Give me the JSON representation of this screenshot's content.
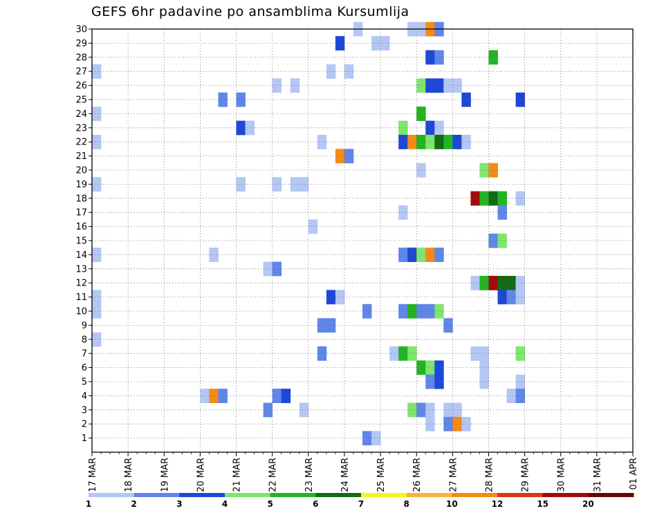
{
  "chart_data": {
    "type": "heatmap",
    "title": "GEFS 6hr padavine po ansamblima Kursumlija",
    "x_ticks": [
      "17 MAR",
      "18 MAR",
      "19 MAR",
      "20 MAR",
      "21 MAR",
      "22 MAR",
      "23 MAR",
      "24 MAR",
      "25 MAR",
      "26 MAR",
      "27 MAR",
      "28 MAR",
      "29 MAR",
      "30 MAR",
      "31 MAR",
      "01 APR"
    ],
    "x_start": "2021-03-17 00:00",
    "x_step_hours": 6,
    "y_ticks": [
      1,
      2,
      3,
      4,
      5,
      6,
      7,
      8,
      9,
      10,
      11,
      12,
      13,
      14,
      15,
      16,
      17,
      18,
      19,
      20,
      21,
      22,
      23,
      24,
      25,
      26,
      27,
      28,
      29,
      30
    ],
    "ylim": [
      0,
      30
    ],
    "grid": true,
    "color_levels": [
      1,
      2,
      3,
      4,
      5,
      6,
      7,
      8,
      10,
      12,
      15,
      20
    ],
    "colorbar_labels": [
      "1",
      "2",
      "3",
      "4",
      "5",
      "6",
      "7",
      "8",
      "10",
      "12",
      "15",
      "20"
    ],
    "colors": [
      "#b4c7f4",
      "#5f86e8",
      "#1d48d6",
      "#7ee66c",
      "#22b422",
      "#136a13",
      "#f4f41c",
      "#f7b43c",
      "#f58a14",
      "#dc3614",
      "#a00c0c",
      "#6a0606"
    ],
    "cells": [
      {
        "member": 30,
        "step": 29,
        "value": 1
      },
      {
        "member": 30,
        "step": 35,
        "value": 1
      },
      {
        "member": 30,
        "step": 36,
        "value": 1
      },
      {
        "member": 30,
        "step": 37,
        "value": 10
      },
      {
        "member": 30,
        "step": 38,
        "value": 2
      },
      {
        "member": 29,
        "step": 27,
        "value": 3
      },
      {
        "member": 29,
        "step": 31,
        "value": 1
      },
      {
        "member": 29,
        "step": 32,
        "value": 1
      },
      {
        "member": 28,
        "step": 37,
        "value": 3
      },
      {
        "member": 28,
        "step": 38,
        "value": 2
      },
      {
        "member": 28,
        "step": 44,
        "value": 5
      },
      {
        "member": 27,
        "step": 0,
        "value": 1
      },
      {
        "member": 27,
        "step": 26,
        "value": 1
      },
      {
        "member": 27,
        "step": 28,
        "value": 1
      },
      {
        "member": 26,
        "step": 20,
        "value": 1
      },
      {
        "member": 26,
        "step": 22,
        "value": 1
      },
      {
        "member": 26,
        "step": 36,
        "value": 4
      },
      {
        "member": 26,
        "step": 37,
        "value": 3
      },
      {
        "member": 26,
        "step": 38,
        "value": 3
      },
      {
        "member": 26,
        "step": 39,
        "value": 1
      },
      {
        "member": 26,
        "step": 40,
        "value": 1
      },
      {
        "member": 25,
        "step": 14,
        "value": 2
      },
      {
        "member": 25,
        "step": 16,
        "value": 2
      },
      {
        "member": 25,
        "step": 41,
        "value": 3
      },
      {
        "member": 25,
        "step": 47,
        "value": 3
      },
      {
        "member": 24,
        "step": 0,
        "value": 1
      },
      {
        "member": 24,
        "step": 36,
        "value": 5
      },
      {
        "member": 23,
        "step": 16,
        "value": 3
      },
      {
        "member": 23,
        "step": 17,
        "value": 1
      },
      {
        "member": 23,
        "step": 34,
        "value": 4
      },
      {
        "member": 23,
        "step": 37,
        "value": 3
      },
      {
        "member": 23,
        "step": 38,
        "value": 1
      },
      {
        "member": 22,
        "step": 0,
        "value": 1
      },
      {
        "member": 22,
        "step": 25,
        "value": 1
      },
      {
        "member": 22,
        "step": 34,
        "value": 3
      },
      {
        "member": 22,
        "step": 35,
        "value": 10
      },
      {
        "member": 22,
        "step": 36,
        "value": 5
      },
      {
        "member": 22,
        "step": 37,
        "value": 4
      },
      {
        "member": 22,
        "step": 38,
        "value": 6
      },
      {
        "member": 22,
        "step": 39,
        "value": 5
      },
      {
        "member": 22,
        "step": 40,
        "value": 3
      },
      {
        "member": 22,
        "step": 41,
        "value": 1
      },
      {
        "member": 21,
        "step": 27,
        "value": 10
      },
      {
        "member": 21,
        "step": 28,
        "value": 2
      },
      {
        "member": 20,
        "step": 36,
        "value": 1
      },
      {
        "member": 20,
        "step": 43,
        "value": 4
      },
      {
        "member": 20,
        "step": 44,
        "value": 10
      },
      {
        "member": 19,
        "step": 0,
        "value": 1
      },
      {
        "member": 19,
        "step": 16,
        "value": 1
      },
      {
        "member": 19,
        "step": 20,
        "value": 1
      },
      {
        "member": 19,
        "step": 22,
        "value": 1
      },
      {
        "member": 19,
        "step": 23,
        "value": 1
      },
      {
        "member": 18,
        "step": 42,
        "value": 15
      },
      {
        "member": 18,
        "step": 43,
        "value": 5
      },
      {
        "member": 18,
        "step": 44,
        "value": 6
      },
      {
        "member": 18,
        "step": 45,
        "value": 5
      },
      {
        "member": 18,
        "step": 47,
        "value": 1
      },
      {
        "member": 17,
        "step": 34,
        "value": 1
      },
      {
        "member": 17,
        "step": 45,
        "value": 2
      },
      {
        "member": 16,
        "step": 24,
        "value": 1
      },
      {
        "member": 15,
        "step": 44,
        "value": 2
      },
      {
        "member": 15,
        "step": 45,
        "value": 4
      },
      {
        "member": 14,
        "step": 0,
        "value": 1
      },
      {
        "member": 14,
        "step": 13,
        "value": 1
      },
      {
        "member": 14,
        "step": 34,
        "value": 2
      },
      {
        "member": 14,
        "step": 35,
        "value": 3
      },
      {
        "member": 14,
        "step": 36,
        "value": 4
      },
      {
        "member": 14,
        "step": 37,
        "value": 10
      },
      {
        "member": 14,
        "step": 38,
        "value": 2
      },
      {
        "member": 13,
        "step": 19,
        "value": 1
      },
      {
        "member": 13,
        "step": 20,
        "value": 2
      },
      {
        "member": 12,
        "step": 42,
        "value": 1
      },
      {
        "member": 12,
        "step": 43,
        "value": 5
      },
      {
        "member": 12,
        "step": 44,
        "value": 15
      },
      {
        "member": 12,
        "step": 45,
        "value": 6
      },
      {
        "member": 12,
        "step": 46,
        "value": 6
      },
      {
        "member": 12,
        "step": 47,
        "value": 1
      },
      {
        "member": 11,
        "step": 0,
        "value": 1
      },
      {
        "member": 11,
        "step": 26,
        "value": 3
      },
      {
        "member": 11,
        "step": 27,
        "value": 1
      },
      {
        "member": 11,
        "step": 45,
        "value": 3
      },
      {
        "member": 11,
        "step": 46,
        "value": 2
      },
      {
        "member": 11,
        "step": 47,
        "value": 1
      },
      {
        "member": 10,
        "step": 0,
        "value": 1
      },
      {
        "member": 10,
        "step": 30,
        "value": 2
      },
      {
        "member": 10,
        "step": 34,
        "value": 2
      },
      {
        "member": 10,
        "step": 35,
        "value": 5
      },
      {
        "member": 10,
        "step": 36,
        "value": 2
      },
      {
        "member": 10,
        "step": 37,
        "value": 2
      },
      {
        "member": 10,
        "step": 38,
        "value": 4
      },
      {
        "member": 9,
        "step": 25,
        "value": 2
      },
      {
        "member": 9,
        "step": 26,
        "value": 2
      },
      {
        "member": 9,
        "step": 39,
        "value": 2
      },
      {
        "member": 8,
        "step": 0,
        "value": 1
      },
      {
        "member": 7,
        "step": 25,
        "value": 2
      },
      {
        "member": 7,
        "step": 33,
        "value": 1
      },
      {
        "member": 7,
        "step": 34,
        "value": 5
      },
      {
        "member": 7,
        "step": 35,
        "value": 4
      },
      {
        "member": 7,
        "step": 42,
        "value": 1
      },
      {
        "member": 7,
        "step": 43,
        "value": 1
      },
      {
        "member": 7,
        "step": 47,
        "value": 4
      },
      {
        "member": 6,
        "step": 36,
        "value": 5
      },
      {
        "member": 6,
        "step": 37,
        "value": 4
      },
      {
        "member": 6,
        "step": 38,
        "value": 3
      },
      {
        "member": 6,
        "step": 43,
        "value": 1
      },
      {
        "member": 5,
        "step": 37,
        "value": 2
      },
      {
        "member": 5,
        "step": 38,
        "value": 3
      },
      {
        "member": 5,
        "step": 43,
        "value": 1
      },
      {
        "member": 5,
        "step": 47,
        "value": 1
      },
      {
        "member": 4,
        "step": 12,
        "value": 1
      },
      {
        "member": 4,
        "step": 13,
        "value": 10
      },
      {
        "member": 4,
        "step": 14,
        "value": 2
      },
      {
        "member": 4,
        "step": 20,
        "value": 2
      },
      {
        "member": 4,
        "step": 21,
        "value": 3
      },
      {
        "member": 4,
        "step": 46,
        "value": 1
      },
      {
        "member": 4,
        "step": 47,
        "value": 2
      },
      {
        "member": 3,
        "step": 19,
        "value": 2
      },
      {
        "member": 3,
        "step": 23,
        "value": 1
      },
      {
        "member": 3,
        "step": 35,
        "value": 4
      },
      {
        "member": 3,
        "step": 36,
        "value": 2
      },
      {
        "member": 3,
        "step": 37,
        "value": 1
      },
      {
        "member": 3,
        "step": 39,
        "value": 1
      },
      {
        "member": 3,
        "step": 40,
        "value": 1
      },
      {
        "member": 2,
        "step": 37,
        "value": 1
      },
      {
        "member": 2,
        "step": 39,
        "value": 2
      },
      {
        "member": 2,
        "step": 40,
        "value": 10
      },
      {
        "member": 2,
        "step": 41,
        "value": 1
      },
      {
        "member": 1,
        "step": 30,
        "value": 2
      },
      {
        "member": 1,
        "step": 31,
        "value": 1
      }
    ]
  }
}
